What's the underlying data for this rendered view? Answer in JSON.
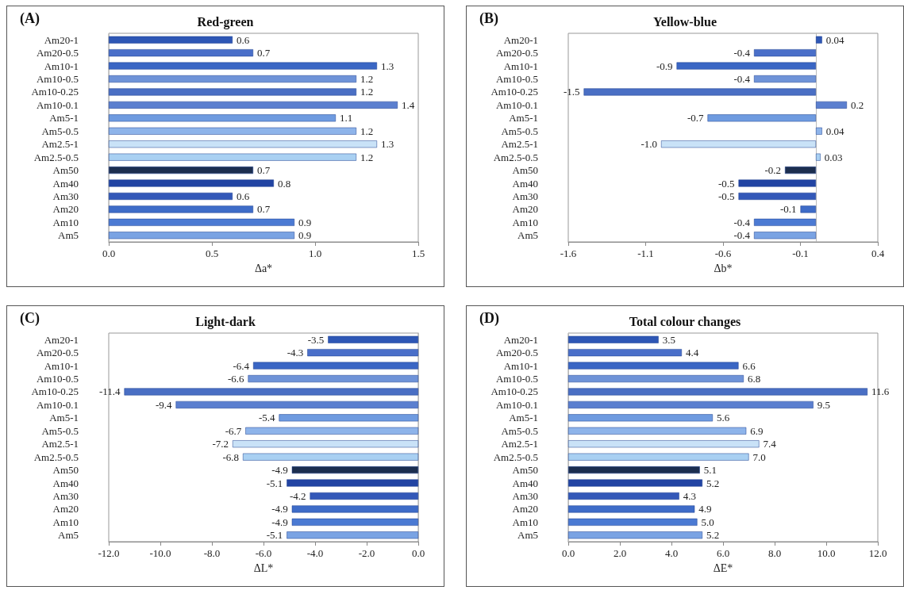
{
  "chart_data": [
    {
      "type": "bar",
      "orientation": "horizontal",
      "title": "Red-green",
      "xlabel": "Δa*",
      "annotations": [
        "(A)"
      ],
      "categories": [
        "Am20-1",
        "Am20-0.5",
        "Am10-1",
        "Am10-0.5",
        "Am10-0.25",
        "Am10-0.1",
        "Am5-1",
        "Am5-0.5",
        "Am2.5-1",
        "Am2.5-0.5",
        "Am50",
        "Am40",
        "Am30",
        "Am20",
        "Am10",
        "Am5"
      ],
      "values": [
        0.6,
        0.7,
        1.3,
        1.2,
        1.2,
        1.4,
        1.1,
        1.2,
        1.3,
        1.2,
        0.7,
        0.8,
        0.6,
        0.7,
        0.9,
        0.9
      ],
      "value_labels": [
        "0.6",
        "0.7",
        "1.3",
        "1.2",
        "1.2",
        "1.4",
        "1.1",
        "1.2",
        "1.3",
        "1.2",
        "0.7",
        "0.8",
        "0.6",
        "0.7",
        "0.9",
        "0.9"
      ],
      "colors": [
        "#2e57b5",
        "#4a6fc9",
        "#3a66c4",
        "#6f93d8",
        "#4a6fc4",
        "#5b7fcf",
        "#6f9be0",
        "#8eb4ea",
        "#c9e2f7",
        "#a9d0f2",
        "#1c2e4f",
        "#2244a3",
        "#3358b8",
        "#3e6cc8",
        "#4b7ad3",
        "#7aa3e3"
      ],
      "xlim": [
        0,
        1.5
      ],
      "xticks": [
        {
          "value": 0,
          "label": "0.0"
        },
        0.5,
        {
          "value": 1,
          "label": "1.0"
        },
        1.5
      ]
    },
    {
      "type": "bar",
      "orientation": "horizontal",
      "title": "Yellow-blue",
      "xlabel": "Δb*",
      "annotations": [
        "(B)"
      ],
      "categories": [
        "Am20-1",
        "Am20-0.5",
        "Am10-1",
        "Am10-0.5",
        "Am10-0.25",
        "Am10-0.1",
        "Am5-1",
        "Am5-0.5",
        "Am2.5-1",
        "Am2.5-0.5",
        "Am50",
        "Am40",
        "Am30",
        "Am20",
        "Am10",
        "Am5"
      ],
      "values": [
        0.04,
        -0.4,
        -0.9,
        -0.4,
        -1.5,
        0.2,
        -0.7,
        0.04,
        -1.0,
        0.03,
        -0.2,
        -0.5,
        -0.5,
        -0.1,
        -0.4,
        -0.4
      ],
      "value_labels": [
        "0.04",
        "-0.4",
        "-0.9",
        "-0.4",
        "-1.5",
        "0.2",
        "-0.7",
        "0.04",
        "-1.0",
        "0.03",
        "-0.2",
        "-0.5",
        "-0.5",
        "-0.1",
        "-0.4",
        "-0.4"
      ],
      "colors": [
        "#2e57b5",
        "#4a6fc9",
        "#3a66c4",
        "#6f93d8",
        "#4a6fc4",
        "#5b7fcf",
        "#6f9be0",
        "#8eb4ea",
        "#c9e2f7",
        "#a9d0f2",
        "#1c2e4f",
        "#2244a3",
        "#3358b8",
        "#3e6cc8",
        "#4b7ad3",
        "#7aa3e3"
      ],
      "xlim": [
        -1.6,
        0.4
      ],
      "xticks": [
        -1.6,
        -1.1,
        -0.6,
        -0.1,
        0.4
      ]
    },
    {
      "type": "bar",
      "orientation": "horizontal",
      "title": "Light-dark",
      "xlabel": "ΔL*",
      "annotations": [
        "(C)"
      ],
      "categories": [
        "Am20-1",
        "Am20-0.5",
        "Am10-1",
        "Am10-0.5",
        "Am10-0.25",
        "Am10-0.1",
        "Am5-1",
        "Am5-0.5",
        "Am2.5-1",
        "Am2.5-0.5",
        "Am50",
        "Am40",
        "Am30",
        "Am20",
        "Am10",
        "Am5"
      ],
      "values": [
        -3.5,
        -4.3,
        -6.4,
        -6.6,
        -11.4,
        -9.4,
        -5.4,
        -6.7,
        -7.2,
        -6.8,
        -4.9,
        -5.1,
        -4.2,
        -4.9,
        -4.9,
        -5.1
      ],
      "value_labels": [
        "-3.5",
        "-4.3",
        "-6.4",
        "-6.6",
        "-11.4",
        "-9.4",
        "-5.4",
        "-6.7",
        "-7.2",
        "-6.8",
        "-4.9",
        "-5.1",
        "-4.2",
        "-4.9",
        "-4.9",
        "-5.1"
      ],
      "colors": [
        "#2e57b5",
        "#4a6fc9",
        "#3a66c4",
        "#6f93d8",
        "#4a6fc4",
        "#5b7fcf",
        "#6f9be0",
        "#8eb4ea",
        "#c9e2f7",
        "#a9d0f2",
        "#1c2e4f",
        "#2244a3",
        "#3358b8",
        "#3e6cc8",
        "#4b7ad3",
        "#7aa3e3"
      ],
      "xlim": [
        -12,
        0
      ],
      "xticks": [
        {
          "value": -12,
          "label": "-12.0"
        },
        {
          "value": -10,
          "label": "-10.0"
        },
        {
          "value": -8,
          "label": "-8.0"
        },
        {
          "value": -6,
          "label": "-6.0"
        },
        {
          "value": -4,
          "label": "-4.0"
        },
        {
          "value": -2,
          "label": "-2.0"
        },
        {
          "value": 0,
          "label": "0.0"
        }
      ]
    },
    {
      "type": "bar",
      "orientation": "horizontal",
      "title": "Total colour changes",
      "xlabel": "ΔE*",
      "annotations": [
        "(D)"
      ],
      "categories": [
        "Am20-1",
        "Am20-0.5",
        "Am10-1",
        "Am10-0.5",
        "Am10-0.25",
        "Am10-0.1",
        "Am5-1",
        "Am5-0.5",
        "Am2.5-1",
        "Am2.5-0.5",
        "Am50",
        "Am40",
        "Am30",
        "Am20",
        "Am10",
        "Am5"
      ],
      "values": [
        3.5,
        4.4,
        6.6,
        6.8,
        11.6,
        9.5,
        5.6,
        6.9,
        7.4,
        7.0,
        5.1,
        5.2,
        4.3,
        4.9,
        5.0,
        5.2
      ],
      "value_labels": [
        "3.5",
        "4.4",
        "6.6",
        "6.8",
        "11.6",
        "9.5",
        "5.6",
        "6.9",
        "7.4",
        "7.0",
        "5.1",
        "5.2",
        "4.3",
        "4.9",
        "5.0",
        "5.2"
      ],
      "colors": [
        "#2e57b5",
        "#4a6fc9",
        "#3a66c4",
        "#6f93d8",
        "#4a6fc4",
        "#5b7fcf",
        "#6f9be0",
        "#8eb4ea",
        "#c9e2f7",
        "#a9d0f2",
        "#1c2e4f",
        "#2244a3",
        "#3358b8",
        "#3e6cc8",
        "#4b7ad3",
        "#7aa3e3"
      ],
      "xlim": [
        0,
        12
      ],
      "xticks": [
        {
          "value": 0,
          "label": "0.0"
        },
        {
          "value": 2,
          "label": "2.0"
        },
        {
          "value": 4,
          "label": "4.0"
        },
        {
          "value": 6,
          "label": "6.0"
        },
        {
          "value": 8,
          "label": "8.0"
        },
        {
          "value": 10,
          "label": "10.0"
        },
        {
          "value": 12,
          "label": "12.0"
        }
      ]
    }
  ]
}
